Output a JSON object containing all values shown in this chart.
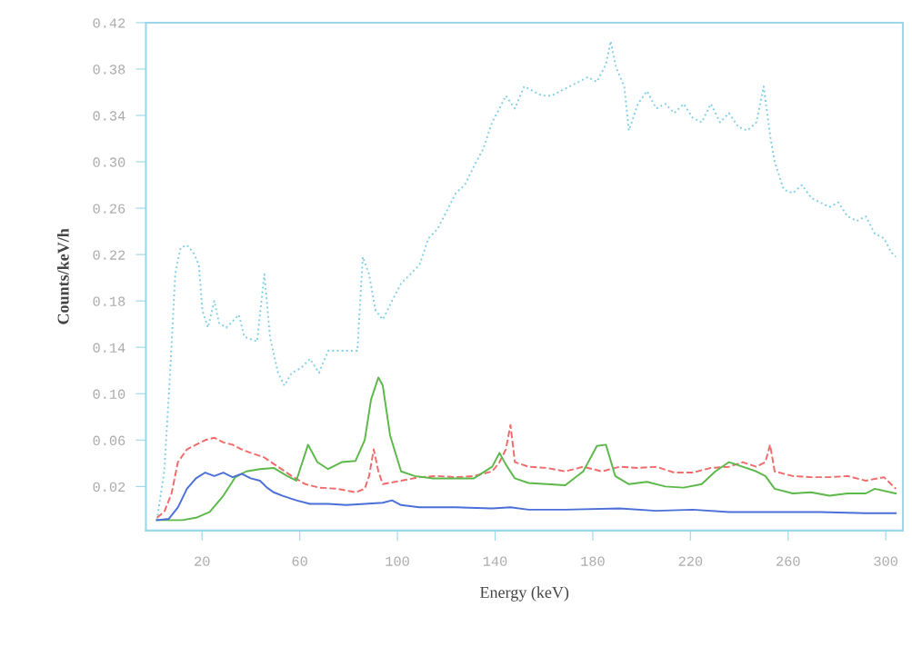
{
  "chart_data": {
    "type": "line",
    "xlabel": "Energy (keV)",
    "ylabel": "Counts/keV/h",
    "xlim": [
      -3,
      307
    ],
    "ylim": [
      -0.018,
      0.42
    ],
    "xticks": [
      20,
      60,
      100,
      140,
      180,
      220,
      260,
      300
    ],
    "yticks": [
      0.02,
      0.06,
      {
        "value": 0.1,
        "label": "0.10"
      },
      0.14,
      0.18,
      0.22,
      0.26,
      {
        "value": 0.3,
        "label": "0.30"
      },
      0.34,
      0.38,
      0.42
    ],
    "grid": false,
    "series": [
      {
        "color": "#80cfe6",
        "line_style": "dotted",
        "x": [
          1.5,
          4.5,
          6.7,
          9,
          11.2,
          13.8,
          16.4,
          18.7,
          20.1,
          22.4,
          25,
          26.9,
          29.9,
          35.1,
          37.3,
          42.5,
          45.5,
          47.8,
          51.1,
          53.7,
          56.7,
          60.4,
          64.2,
          67.9,
          71.6,
          83.6,
          85.8,
          88.4,
          91,
          94,
          97.8,
          101.5,
          105.2,
          109,
          112.7,
          116.4,
          120.1,
          123.9,
          127.6,
          131.3,
          135.1,
          138.8,
          141.8,
          144.4,
          148.1,
          151.9,
          155.6,
          159.3,
          163.1,
          166.8,
          170.5,
          174.3,
          178,
          181.7,
          185.4,
          187.3,
          189.6,
          192.9,
          194.8,
          198.5,
          202.2,
          206,
          209.7,
          213.4,
          217.2,
          220.9,
          224.6,
          228.4,
          232.1,
          235.8,
          239.6,
          243.3,
          247,
          250,
          252.6,
          254.5,
          258.2,
          261.9,
          265.7,
          269.4,
          273.1,
          276.9,
          280.6,
          284.3,
          288.1,
          291.8,
          295.5,
          299.3,
          302.2,
          304.1
        ],
        "values": [
          -0.009,
          0.033,
          0.11,
          0.203,
          0.226,
          0.228,
          0.222,
          0.211,
          0.172,
          0.157,
          0.18,
          0.161,
          0.157,
          0.168,
          0.149,
          0.145,
          0.203,
          0.149,
          0.118,
          0.107,
          0.118,
          0.122,
          0.13,
          0.118,
          0.137,
          0.137,
          0.218,
          0.203,
          0.172,
          0.164,
          0.18,
          0.195,
          0.203,
          0.211,
          0.234,
          0.242,
          0.257,
          0.273,
          0.28,
          0.296,
          0.311,
          0.334,
          0.346,
          0.357,
          0.346,
          0.365,
          0.361,
          0.357,
          0.357,
          0.361,
          0.365,
          0.369,
          0.373,
          0.369,
          0.384,
          0.404,
          0.381,
          0.365,
          0.327,
          0.35,
          0.361,
          0.346,
          0.35,
          0.342,
          0.35,
          0.338,
          0.334,
          0.35,
          0.334,
          0.342,
          0.33,
          0.327,
          0.334,
          0.365,
          0.323,
          0.3,
          0.276,
          0.273,
          0.28,
          0.269,
          0.265,
          0.261,
          0.265,
          0.253,
          0.249,
          0.253,
          0.238,
          0.234,
          0.222,
          0.218
        ]
      },
      {
        "color": "#f06a6a",
        "line_style": "dashed",
        "x": [
          1.5,
          4.5,
          7.5,
          10.1,
          13.8,
          17.5,
          21.3,
          25,
          28.7,
          32.5,
          36.2,
          39.9,
          45.5,
          51.1,
          56.7,
          62.3,
          67.9,
          75.4,
          82.8,
          86.6,
          88.4,
          90.3,
          92.2,
          94,
          101.5,
          109,
          116.4,
          123.9,
          131.3,
          138.8,
          141.8,
          144.4,
          146.3,
          148.1,
          153.7,
          161.2,
          168.7,
          176.1,
          183.6,
          191,
          198.5,
          206,
          213.4,
          220.9,
          228.4,
          235.8,
          241.4,
          247,
          250.7,
          252.6,
          254.5,
          261.9,
          269.4,
          276.9,
          284.3,
          291.8,
          299.3,
          304.1
        ],
        "values": [
          -0.007,
          -0.002,
          0.014,
          0.041,
          0.052,
          0.056,
          0.06,
          0.062,
          0.058,
          0.056,
          0.052,
          0.049,
          0.045,
          0.037,
          0.029,
          0.022,
          0.019,
          0.018,
          0.015,
          0.018,
          0.029,
          0.052,
          0.033,
          0.022,
          0.025,
          0.028,
          0.029,
          0.028,
          0.029,
          0.033,
          0.041,
          0.052,
          0.073,
          0.041,
          0.037,
          0.036,
          0.033,
          0.037,
          0.033,
          0.037,
          0.036,
          0.037,
          0.032,
          0.032,
          0.036,
          0.037,
          0.041,
          0.037,
          0.041,
          0.056,
          0.033,
          0.029,
          0.028,
          0.028,
          0.029,
          0.025,
          0.028,
          0.018
        ]
      },
      {
        "color": "#5cb84a",
        "line_style": "solid",
        "x": [
          1.5,
          6.3,
          11.9,
          17.5,
          23.1,
          28.7,
          33.6,
          38.1,
          43.7,
          49.3,
          54.9,
          58.6,
          63.4,
          67.2,
          71.6,
          77.2,
          82.8,
          86.6,
          89.2,
          92.2,
          94,
          97,
          101.5,
          107.1,
          114.6,
          123.9,
          131.3,
          138.8,
          141.8,
          144.4,
          148.1,
          153.7,
          161.2,
          168.7,
          176.1,
          181.7,
          185.4,
          189.2,
          194.8,
          202.2,
          209.7,
          217.2,
          224.6,
          230.2,
          235.8,
          241.4,
          247,
          250.7,
          254.5,
          261.9,
          269.4,
          276.9,
          284.3,
          291.8,
          295.5,
          304.1
        ],
        "values": [
          -0.009,
          -0.009,
          -0.009,
          -0.007,
          -0.002,
          0.012,
          0.028,
          0.033,
          0.035,
          0.036,
          0.029,
          0.025,
          0.056,
          0.041,
          0.035,
          0.041,
          0.042,
          0.06,
          0.095,
          0.114,
          0.107,
          0.064,
          0.033,
          0.029,
          0.027,
          0.027,
          0.027,
          0.037,
          0.049,
          0.039,
          0.027,
          0.023,
          0.022,
          0.021,
          0.033,
          0.055,
          0.056,
          0.029,
          0.022,
          0.024,
          0.02,
          0.019,
          0.022,
          0.033,
          0.041,
          0.037,
          0.033,
          0.029,
          0.018,
          0.014,
          0.015,
          0.012,
          0.014,
          0.014,
          0.018,
          0.014
        ]
      },
      {
        "color": "#4a6fd8",
        "line_style": "solid",
        "x": [
          1.5,
          6.3,
          10.1,
          13.8,
          17.5,
          21.3,
          25,
          28.7,
          32.5,
          36.2,
          39.9,
          43.7,
          46.6,
          49.3,
          53,
          58.6,
          64.2,
          71.6,
          79.1,
          86.6,
          94,
          97.8,
          101.5,
          109,
          123.9,
          138.8,
          146.3,
          153.7,
          168.7,
          191,
          206,
          220.9,
          235.8,
          254.5,
          273.1,
          291.8,
          304.1
        ],
        "values": [
          -0.009,
          -0.008,
          0.002,
          0.018,
          0.027,
          0.032,
          0.029,
          0.032,
          0.028,
          0.031,
          0.027,
          0.025,
          0.019,
          0.015,
          0.012,
          0.008,
          0.005,
          0.005,
          0.004,
          0.005,
          0.006,
          0.008,
          0.004,
          0.002,
          0.002,
          0.001,
          0.002,
          0.0,
          0.0,
          0.001,
          -0.001,
          0.0,
          -0.002,
          -0.002,
          -0.002,
          -0.003,
          -0.003
        ]
      }
    ]
  }
}
